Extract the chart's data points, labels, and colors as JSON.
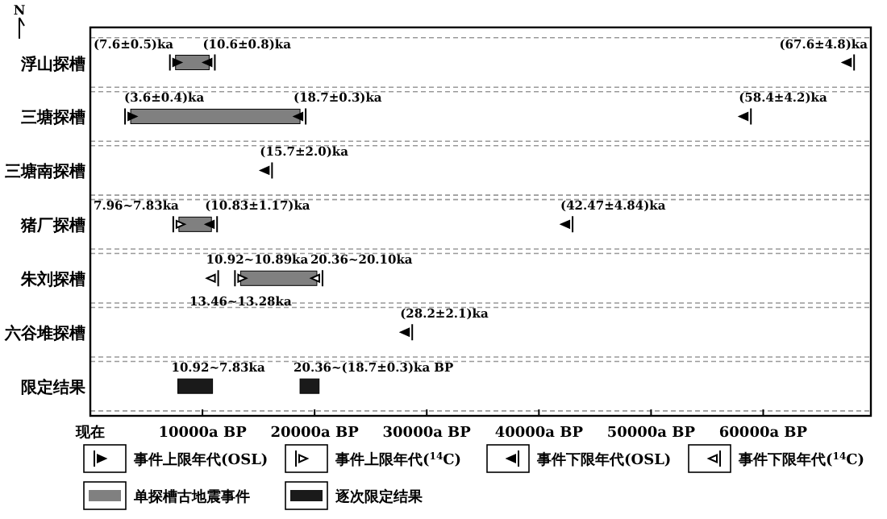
{
  "chart_data": {
    "type": "bar",
    "orientation": "horizontal",
    "categories": [
      "浮山探槽",
      "三塘探槽",
      "三塘南探槽",
      "猪厂探槽",
      "朱刘探槽",
      "六谷堆探槽",
      "限定结果"
    ],
    "xlim": [
      0,
      69600
    ],
    "xticks": [
      {
        "value": 0,
        "label": "现在"
      },
      {
        "value": 10000,
        "label": "10000a BP"
      },
      {
        "value": 20000,
        "label": "20000a BP"
      },
      {
        "value": 30000,
        "label": "30000a BP"
      },
      {
        "value": 40000,
        "label": "40000a BP"
      },
      {
        "value": 50000,
        "label": "50000a BP"
      },
      {
        "value": 60000,
        "label": "60000a BP"
      }
    ],
    "grid": "y",
    "legend": "bottom",
    "series": [
      {
        "name": "单探槽古地震事件",
        "color": "#808080",
        "base": [
          7600,
          3600,
          null,
          7900,
          13400,
          null,
          null
        ],
        "values": [
          3000,
          15100,
          null,
          2900,
          6800,
          null,
          null
        ]
      },
      {
        "name": "逐次限定结果",
        "color": "#1a1a1a",
        "base": [
          null,
          null,
          null,
          null,
          null,
          null,
          7800
        ],
        "values": [
          null,
          null,
          null,
          null,
          null,
          null,
          3100
        ]
      },
      {
        "color": "#1a1a1a",
        "base": [
          null,
          null,
          null,
          null,
          null,
          null,
          18700
        ],
        "values": [
          null,
          null,
          null,
          null,
          null,
          null,
          1700
        ]
      },
      {
        "type": "scatter",
        "name": "事件上限年代(OSL)",
        "color": "#000000",
        "values": [
          7600,
          3600,
          null,
          null,
          null,
          null,
          null
        ]
      },
      {
        "type": "scatter",
        "name": "事件上限年代($^{14}$C)",
        "color": "#ffffff",
        "values": [
          null,
          null,
          null,
          7900,
          13400,
          null,
          null
        ]
      },
      {
        "type": "scatter",
        "name": "事件下限年代(OSL)",
        "color": "#000000",
        "values": [
          10600,
          18700,
          15700,
          10800,
          null,
          28200,
          null
        ]
      },
      {
        "type": "scatter",
        "color": "#000000",
        "values": [
          67600,
          58400,
          null,
          42500,
          null,
          null,
          null
        ]
      },
      {
        "type": "scatter",
        "name": "事件下限年代($^{14}$C)",
        "color": "#ffffff",
        "values": [
          null,
          null,
          null,
          null,
          10900,
          null,
          null
        ]
      },
      {
        "type": "scatter",
        "color": "#ffffff",
        "values": [
          null,
          null,
          null,
          null,
          20200,
          null,
          null
        ]
      }
    ],
    "annotations": [
      "N",
      {
        "text": "(67.6±4.8)ka",
        "x": 67600,
        "y": "浮山探槽"
      },
      {
        "text": "(10.6±0.8)ka",
        "x": 10600,
        "y": "浮山探槽"
      },
      {
        "text": "(7.6±0.5)ka",
        "x": 7600,
        "y": "浮山探槽"
      },
      {
        "text": "(3.6±0.4)ka",
        "x": 3600,
        "y": "三塘探槽"
      },
      {
        "text": "(18.7±0.3)ka",
        "x": 18700,
        "y": "三塘探槽"
      },
      {
        "text": "(58.4±4.2)ka",
        "x": 58400,
        "y": "三塘探槽"
      },
      {
        "text": "(15.7±2.0)ka",
        "x": 15700,
        "y": "三塘南探槽"
      },
      {
        "text": "(42.47±4.84)ka",
        "x": 42500,
        "y": "猪厂探槽"
      },
      {
        "text": "(10.83±1.17)ka",
        "x": 10800,
        "y": "猪厂探槽"
      },
      {
        "text": "7.96~7.83ka",
        "x": 7900,
        "y": "猪厂探槽"
      },
      {
        "text": "20.36~20.10ka",
        "x": 20200,
        "y": "朱刘探槽"
      },
      {
        "text": "10.92~10.89ka",
        "x": 10900,
        "y": "朱刘探槽"
      },
      {
        "text": "13.46~13.28ka",
        "x": 13400,
        "y": "朱刘探槽"
      },
      {
        "text": "(28.2±2.1)ka",
        "x": 28200,
        "y": "六谷堆探槽"
      },
      {
        "text": "10.92~7.83ka",
        "x": 7800,
        "y": "限定结果"
      },
      {
        "text": "20.36~(18.7±0.3)ka BP",
        "x": 18700,
        "y": "限定结果"
      }
    ]
  }
}
